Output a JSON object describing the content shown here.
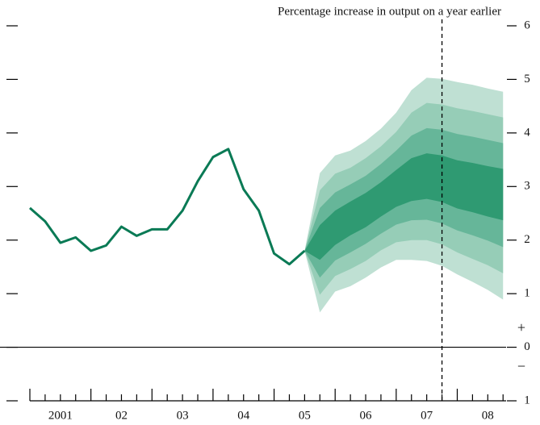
{
  "chart_data": {
    "type": "fan",
    "title": "Percentage increase in output on a year earlier",
    "xlim": [
      2001,
      2008.8
    ],
    "ylim": [
      -1,
      6
    ],
    "yticks": [
      6,
      5,
      4,
      3,
      2,
      1,
      0,
      {
        "value": -1,
        "label": "1"
      }
    ],
    "sign_labels": [
      "+",
      "−"
    ],
    "xticks": [
      {
        "value": 2001.5,
        "label": "2001"
      },
      {
        "value": 2002.5,
        "label": "02"
      },
      {
        "value": 2003.5,
        "label": "03"
      },
      {
        "value": 2004.5,
        "label": "04"
      },
      {
        "value": 2005.5,
        "label": "05"
      },
      {
        "value": 2006.5,
        "label": "06"
      },
      {
        "value": 2007.5,
        "label": "07"
      },
      {
        "value": 2008.5,
        "label": "08"
      }
    ],
    "x_quarter_ticks": [
      2001,
      2001.25,
      2001.5,
      2001.75,
      2002,
      2002.25,
      2002.5,
      2002.75,
      2003,
      2003.25,
      2003.5,
      2003.75,
      2004,
      2004.25,
      2004.5,
      2004.75,
      2005,
      2005.25,
      2005.5,
      2005.75,
      2006,
      2006.25,
      2006.5,
      2006.75,
      2007,
      2007.25,
      2007.5,
      2007.75,
      2008,
      2008.25,
      2008.5,
      2008.75
    ],
    "vline_x": 2007.75,
    "line": {
      "color": "#0a7a55",
      "x": [
        2001,
        2001.25,
        2001.5,
        2001.75,
        2002,
        2002.25,
        2002.5,
        2002.75,
        2003,
        2003.25,
        2003.5,
        2003.75,
        2004,
        2004.25,
        2004.5,
        2004.75,
        2005,
        2005.25,
        2005.5
      ],
      "values": [
        2.6,
        2.35,
        1.95,
        2.05,
        1.8,
        1.9,
        2.25,
        2.08,
        2.2,
        2.2,
        2.55,
        3.1,
        3.55,
        3.7,
        2.95,
        2.55,
        1.75,
        1.55,
        1.8
      ]
    },
    "fan": {
      "x": [
        2005.5,
        2005.75,
        2006,
        2006.25,
        2006.5,
        2006.75,
        2007,
        2007.25,
        2007.5,
        2007.75,
        2008,
        2008.25,
        2008.5,
        2008.75
      ],
      "bands": [
        {
          "color": "#bfe0d3",
          "upper": [
            1.8,
            3.25,
            3.58,
            3.67,
            3.85,
            4.08,
            4.38,
            4.8,
            5.03,
            5.01,
            4.95,
            4.9,
            4.83,
            4.77
          ],
          "lower": [
            1.8,
            0.65,
            1.04,
            1.14,
            1.3,
            1.49,
            1.63,
            1.63,
            1.61,
            1.52,
            1.36,
            1.22,
            1.07,
            0.89
          ]
        },
        {
          "color": "#96cdb7",
          "upper": [
            1.8,
            2.93,
            3.24,
            3.35,
            3.53,
            3.75,
            4.02,
            4.38,
            4.56,
            4.53,
            4.46,
            4.41,
            4.35,
            4.29
          ],
          "lower": [
            1.8,
            0.98,
            1.33,
            1.46,
            1.61,
            1.81,
            1.96,
            2.0,
            2.0,
            1.92,
            1.77,
            1.65,
            1.53,
            1.38
          ]
        },
        {
          "color": "#66b699",
          "upper": [
            1.8,
            2.6,
            2.89,
            3.04,
            3.2,
            3.42,
            3.67,
            3.95,
            4.09,
            4.06,
            3.98,
            3.93,
            3.87,
            3.81
          ],
          "lower": [
            1.8,
            1.3,
            1.62,
            1.77,
            1.93,
            2.12,
            2.29,
            2.37,
            2.38,
            2.31,
            2.18,
            2.09,
            1.99,
            1.87
          ]
        },
        {
          "color": "#2f9a72",
          "upper": [
            1.8,
            2.28,
            2.55,
            2.72,
            2.88,
            3.08,
            3.31,
            3.53,
            3.62,
            3.58,
            3.49,
            3.44,
            3.38,
            3.33
          ],
          "lower": [
            1.8,
            1.63,
            1.91,
            2.09,
            2.24,
            2.44,
            2.62,
            2.73,
            2.77,
            2.71,
            2.59,
            2.52,
            2.44,
            2.37
          ]
        }
      ]
    }
  }
}
